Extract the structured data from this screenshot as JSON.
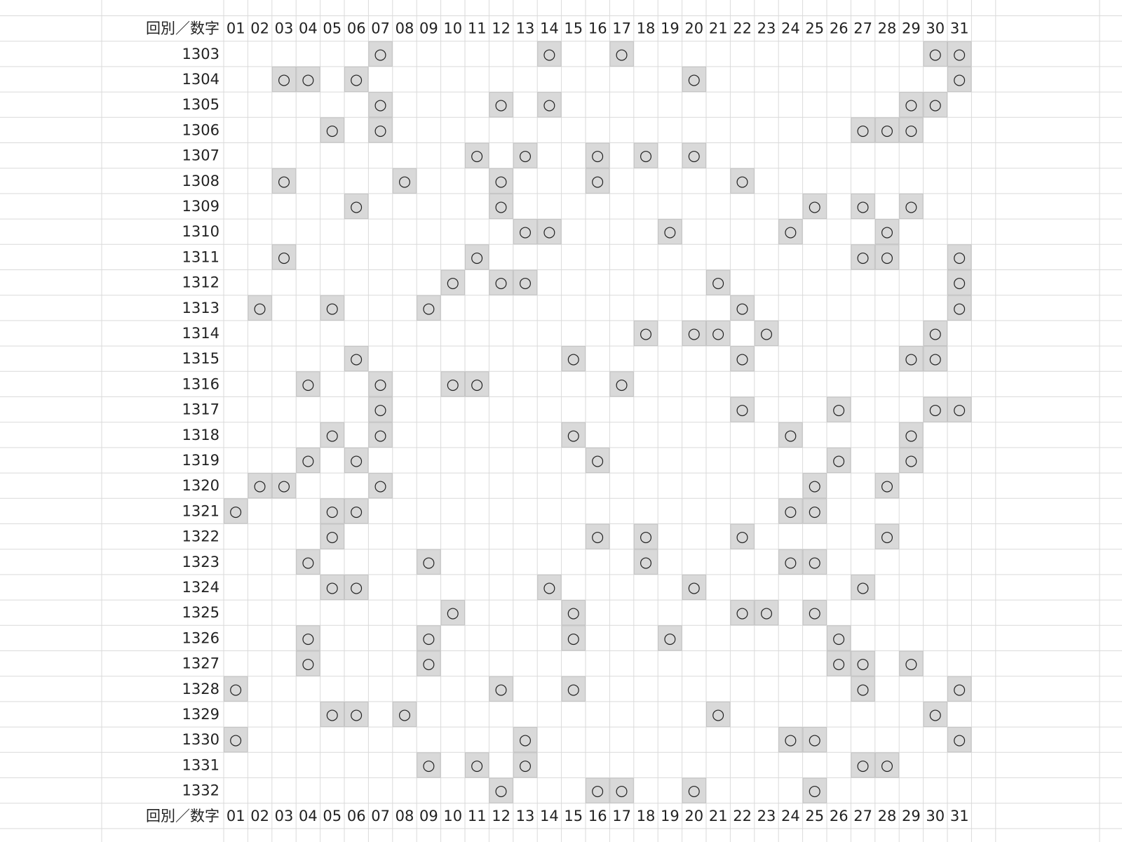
{
  "table": {
    "header": [
      "回別／数字",
      "01",
      "02",
      "03",
      "04",
      "05",
      "06",
      "07",
      "08",
      "09",
      "10",
      "11",
      "12",
      "13",
      "14",
      "15",
      "16",
      "17",
      "18",
      "19",
      "20",
      "21",
      "22",
      "23",
      "24",
      "25",
      "26",
      "27",
      "28",
      "29",
      "30",
      "31"
    ],
    "rows": [
      [
        "1303",
        null,
        null,
        null,
        null,
        null,
        null,
        "○",
        null,
        null,
        null,
        null,
        null,
        null,
        "○",
        null,
        null,
        "○",
        null,
        null,
        null,
        null,
        null,
        null,
        null,
        null,
        null,
        null,
        null,
        null,
        "○",
        "○"
      ],
      [
        "1304",
        null,
        null,
        "○",
        "○",
        null,
        "○",
        null,
        null,
        null,
        null,
        null,
        null,
        null,
        null,
        null,
        null,
        null,
        null,
        null,
        "○",
        null,
        null,
        null,
        null,
        null,
        null,
        null,
        null,
        null,
        null,
        "○"
      ],
      [
        "1305",
        null,
        null,
        null,
        null,
        null,
        null,
        "○",
        null,
        null,
        null,
        null,
        "○",
        null,
        "○",
        null,
        null,
        null,
        null,
        null,
        null,
        null,
        null,
        null,
        null,
        null,
        null,
        null,
        null,
        "○",
        "○",
        null
      ],
      [
        "1306",
        null,
        null,
        null,
        null,
        "○",
        null,
        "○",
        null,
        null,
        null,
        null,
        null,
        null,
        null,
        null,
        null,
        null,
        null,
        null,
        null,
        null,
        null,
        null,
        null,
        null,
        null,
        "○",
        "○",
        "○",
        null,
        null
      ],
      [
        "1307",
        null,
        null,
        null,
        null,
        null,
        null,
        null,
        null,
        null,
        null,
        "○",
        null,
        "○",
        null,
        null,
        "○",
        null,
        "○",
        null,
        "○",
        null,
        null,
        null,
        null,
        null,
        null,
        null,
        null,
        null,
        null,
        null
      ],
      [
        "1308",
        null,
        null,
        "○",
        null,
        null,
        null,
        null,
        "○",
        null,
        null,
        null,
        "○",
        null,
        null,
        null,
        "○",
        null,
        null,
        null,
        null,
        null,
        "○",
        null,
        null,
        null,
        null,
        null,
        null,
        null,
        null,
        null
      ],
      [
        "1309",
        null,
        null,
        null,
        null,
        null,
        "○",
        null,
        null,
        null,
        null,
        null,
        "○",
        null,
        null,
        null,
        null,
        null,
        null,
        null,
        null,
        null,
        null,
        null,
        null,
        "○",
        null,
        "○",
        null,
        "○",
        null,
        null
      ],
      [
        "1310",
        null,
        null,
        null,
        null,
        null,
        null,
        null,
        null,
        null,
        null,
        null,
        null,
        "○",
        "○",
        null,
        null,
        null,
        null,
        "○",
        null,
        null,
        null,
        null,
        "○",
        null,
        null,
        null,
        "○",
        null,
        null,
        null
      ],
      [
        "1311",
        null,
        null,
        "○",
        null,
        null,
        null,
        null,
        null,
        null,
        null,
        "○",
        null,
        null,
        null,
        null,
        null,
        null,
        null,
        null,
        null,
        null,
        null,
        null,
        null,
        null,
        null,
        "○",
        "○",
        null,
        null,
        "○"
      ],
      [
        "1312",
        null,
        null,
        null,
        null,
        null,
        null,
        null,
        null,
        null,
        "○",
        null,
        "○",
        "○",
        null,
        null,
        null,
        null,
        null,
        null,
        null,
        "○",
        null,
        null,
        null,
        null,
        null,
        null,
        null,
        null,
        null,
        "○"
      ],
      [
        "1313",
        null,
        "○",
        null,
        null,
        "○",
        null,
        null,
        null,
        "○",
        null,
        null,
        null,
        null,
        null,
        null,
        null,
        null,
        null,
        null,
        null,
        null,
        "○",
        null,
        null,
        null,
        null,
        null,
        null,
        null,
        null,
        "○"
      ],
      [
        "1314",
        null,
        null,
        null,
        null,
        null,
        null,
        null,
        null,
        null,
        null,
        null,
        null,
        null,
        null,
        null,
        null,
        null,
        "○",
        null,
        "○",
        "○",
        null,
        "○",
        null,
        null,
        null,
        null,
        null,
        null,
        "○",
        null
      ],
      [
        "1315",
        null,
        null,
        null,
        null,
        null,
        "○",
        null,
        null,
        null,
        null,
        null,
        null,
        null,
        null,
        "○",
        null,
        null,
        null,
        null,
        null,
        null,
        "○",
        null,
        null,
        null,
        null,
        null,
        null,
        "○",
        "○",
        null
      ],
      [
        "1316",
        null,
        null,
        null,
        "○",
        null,
        null,
        "○",
        null,
        null,
        "○",
        "○",
        null,
        null,
        null,
        null,
        null,
        "○",
        null,
        null,
        null,
        null,
        null,
        null,
        null,
        null,
        null,
        null,
        null,
        null,
        null,
        null
      ],
      [
        "1317",
        null,
        null,
        null,
        null,
        null,
        null,
        "○",
        null,
        null,
        null,
        null,
        null,
        null,
        null,
        null,
        null,
        null,
        null,
        null,
        null,
        null,
        "○",
        null,
        null,
        null,
        "○",
        null,
        null,
        null,
        "○",
        "○"
      ],
      [
        "1318",
        null,
        null,
        null,
        null,
        "○",
        null,
        "○",
        null,
        null,
        null,
        null,
        null,
        null,
        null,
        "○",
        null,
        null,
        null,
        null,
        null,
        null,
        null,
        null,
        "○",
        null,
        null,
        null,
        null,
        "○",
        null,
        null
      ],
      [
        "1319",
        null,
        null,
        null,
        "○",
        null,
        "○",
        null,
        null,
        null,
        null,
        null,
        null,
        null,
        null,
        null,
        "○",
        null,
        null,
        null,
        null,
        null,
        null,
        null,
        null,
        null,
        "○",
        null,
        null,
        "○",
        null,
        null
      ],
      [
        "1320",
        null,
        "○",
        "○",
        null,
        null,
        null,
        "○",
        null,
        null,
        null,
        null,
        null,
        null,
        null,
        null,
        null,
        null,
        null,
        null,
        null,
        null,
        null,
        null,
        null,
        "○",
        null,
        null,
        "○",
        null,
        null,
        null
      ],
      [
        "1321",
        "○",
        null,
        null,
        null,
        "○",
        "○",
        null,
        null,
        null,
        null,
        null,
        null,
        null,
        null,
        null,
        null,
        null,
        null,
        null,
        null,
        null,
        null,
        null,
        "○",
        "○",
        null,
        null,
        null,
        null,
        null,
        null
      ],
      [
        "1322",
        null,
        null,
        null,
        null,
        "○",
        null,
        null,
        null,
        null,
        null,
        null,
        null,
        null,
        null,
        null,
        "○",
        null,
        "○",
        null,
        null,
        null,
        "○",
        null,
        null,
        null,
        null,
        null,
        "○",
        null,
        null,
        null
      ],
      [
        "1323",
        null,
        null,
        null,
        "○",
        null,
        null,
        null,
        null,
        "○",
        null,
        null,
        null,
        null,
        null,
        null,
        null,
        null,
        "○",
        null,
        null,
        null,
        null,
        null,
        "○",
        "○",
        null,
        null,
        null,
        null,
        null,
        null
      ],
      [
        "1324",
        null,
        null,
        null,
        null,
        "○",
        "○",
        null,
        null,
        null,
        null,
        null,
        null,
        null,
        "○",
        null,
        null,
        null,
        null,
        null,
        "○",
        null,
        null,
        null,
        null,
        null,
        null,
        "○",
        null,
        null,
        null,
        null
      ],
      [
        "1325",
        null,
        null,
        null,
        null,
        null,
        null,
        null,
        null,
        null,
        "○",
        null,
        null,
        null,
        null,
        "○",
        null,
        null,
        null,
        null,
        null,
        null,
        "○",
        "○",
        null,
        "○",
        null,
        null,
        null,
        null,
        null,
        null
      ],
      [
        "1326",
        null,
        null,
        null,
        "○",
        null,
        null,
        null,
        null,
        "○",
        null,
        null,
        null,
        null,
        null,
        "○",
        null,
        null,
        null,
        "○",
        null,
        null,
        null,
        null,
        null,
        null,
        "○",
        null,
        null,
        null,
        null,
        null
      ],
      [
        "1327",
        null,
        null,
        null,
        "○",
        null,
        null,
        null,
        null,
        "○",
        null,
        null,
        null,
        null,
        null,
        null,
        null,
        null,
        null,
        null,
        null,
        null,
        null,
        null,
        null,
        null,
        "○",
        "○",
        null,
        "○",
        null,
        null
      ],
      [
        "1328",
        "○",
        null,
        null,
        null,
        null,
        null,
        null,
        null,
        null,
        null,
        null,
        "○",
        null,
        null,
        "○",
        null,
        null,
        null,
        null,
        null,
        null,
        null,
        null,
        null,
        null,
        null,
        "○",
        null,
        null,
        null,
        "○"
      ],
      [
        "1329",
        null,
        null,
        null,
        null,
        "○",
        "○",
        null,
        "○",
        null,
        null,
        null,
        null,
        null,
        null,
        null,
        null,
        null,
        null,
        null,
        null,
        "○",
        null,
        null,
        null,
        null,
        null,
        null,
        null,
        null,
        "○",
        null
      ],
      [
        "1330",
        "○",
        null,
        null,
        null,
        null,
        null,
        null,
        null,
        null,
        null,
        null,
        null,
        "○",
        null,
        null,
        null,
        null,
        null,
        null,
        null,
        null,
        null,
        null,
        "○",
        "○",
        null,
        null,
        null,
        null,
        null,
        "○"
      ],
      [
        "1331",
        null,
        null,
        null,
        null,
        null,
        null,
        null,
        null,
        "○",
        null,
        "○",
        null,
        "○",
        null,
        null,
        null,
        null,
        null,
        null,
        null,
        null,
        null,
        null,
        null,
        null,
        null,
        "○",
        "○",
        null,
        null,
        null
      ],
      [
        "1332",
        null,
        null,
        null,
        null,
        null,
        null,
        null,
        null,
        null,
        null,
        null,
        "○",
        null,
        null,
        null,
        "○",
        "○",
        null,
        null,
        "○",
        null,
        null,
        null,
        null,
        "○",
        null,
        null,
        null,
        null,
        null,
        null
      ]
    ],
    "footer": [
      "回別／数字",
      "01",
      "02",
      "03",
      "04",
      "05",
      "06",
      "07",
      "08",
      "09",
      "10",
      "11",
      "12",
      "13",
      "14",
      "15",
      "16",
      "17",
      "18",
      "19",
      "20",
      "21",
      "22",
      "23",
      "24",
      "25",
      "26",
      "27",
      "28",
      "29",
      "30",
      "31"
    ]
  }
}
